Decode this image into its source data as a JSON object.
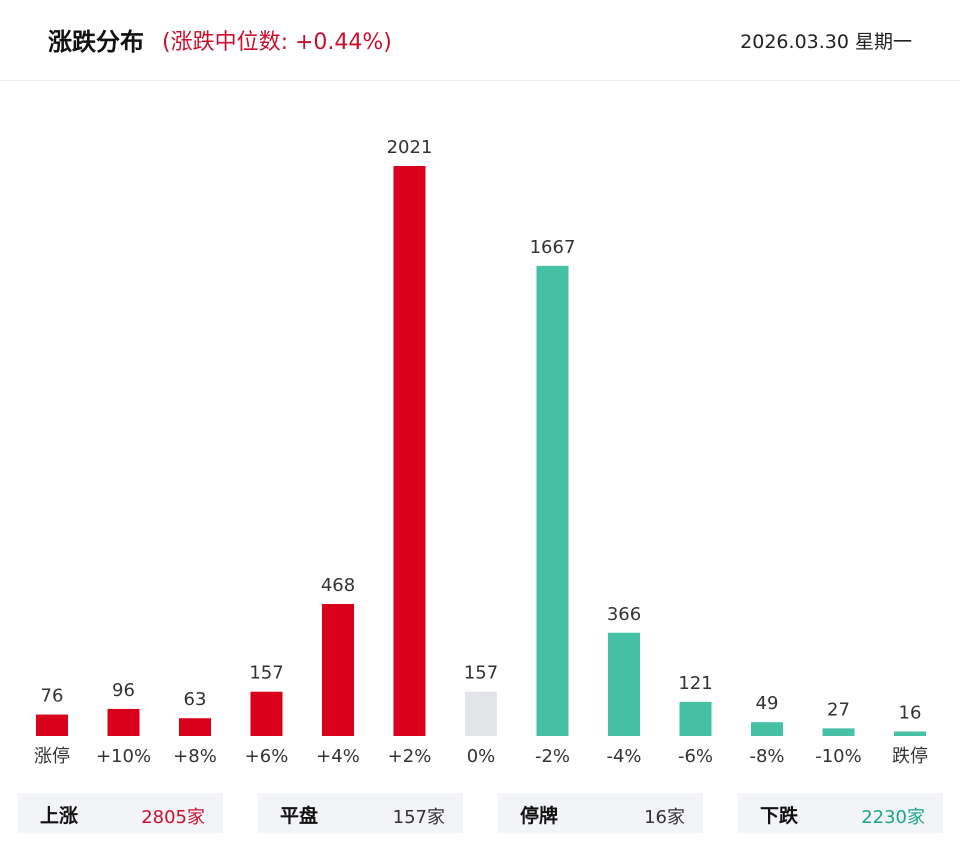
{
  "header": {
    "title": "涨跌分布",
    "subtitle": "(涨跌中位数: +0.44%)",
    "date": "2026.03.30 星期一"
  },
  "chart_data": {
    "type": "bar",
    "title": "涨跌分布",
    "categories": [
      "涨停",
      "+10%",
      "+8%",
      "+6%",
      "+4%",
      "+2%",
      "0%",
      "-2%",
      "-4%",
      "-6%",
      "-8%",
      "-10%",
      "跌停"
    ],
    "values": [
      76,
      96,
      63,
      157,
      468,
      2021,
      157,
      1667,
      366,
      121,
      49,
      27,
      16
    ],
    "colors": [
      "#d9001b",
      "#d9001b",
      "#d9001b",
      "#d9001b",
      "#d9001b",
      "#d9001b",
      "#e3e4e8",
      "#46c1a6",
      "#46c1a6",
      "#46c1a6",
      "#46c1a6",
      "#46c1a6",
      "#46c1a6"
    ],
    "ylim": [
      0,
      2021
    ],
    "grid": false,
    "xlabel": "",
    "ylabel": ""
  },
  "summary": [
    {
      "label": "上涨",
      "value": "2805家",
      "color": "#c8102e"
    },
    {
      "label": "平盘",
      "value": "157家",
      "color": "#333333"
    },
    {
      "label": "停牌",
      "value": "16家",
      "color": "#333333"
    },
    {
      "label": "下跌",
      "value": "2230家",
      "color": "#1aa58a"
    }
  ],
  "colors": {
    "up": "#d9001b",
    "flat": "#e3e4e8",
    "down": "#46c1a6"
  }
}
